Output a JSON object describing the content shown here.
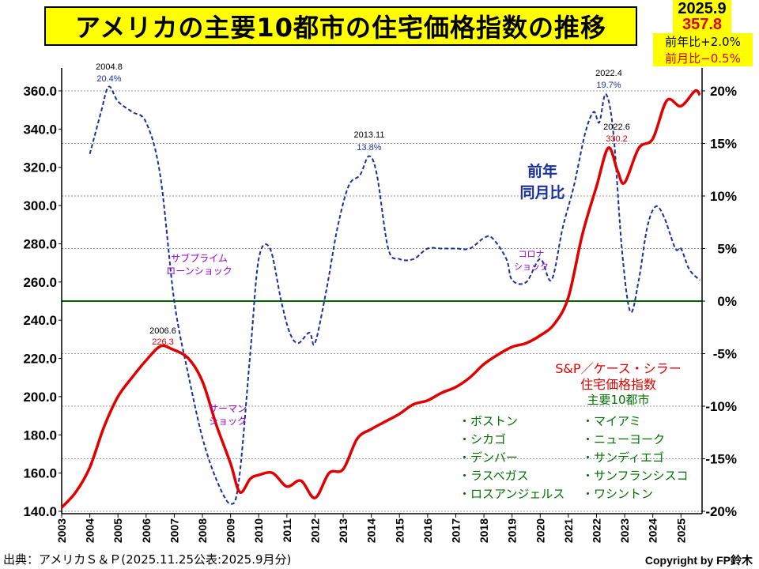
{
  "title": "アメリカの主要10都市の住宅価格指数の推移",
  "latest": {
    "date": "2025.9",
    "value": "357.8",
    "yoy": "前年比+2.0%",
    "mom": "前月比−0.5%"
  },
  "footer": {
    "source": "出典：アメリカＳ＆Ｐ(2025.11.25公表:2025.9月分)",
    "credit": "Copyright by FP鈴木"
  },
  "colors": {
    "index_line": "#e00000",
    "yoy_line": "#1a2fa0",
    "zero_line": "#006400",
    "annotation_purple": "#9900cc",
    "cities_text": "#007000",
    "title_bg": "#ffff00"
  },
  "chart_data": {
    "type": "line",
    "left_axis": {
      "min": 140,
      "max": 360,
      "ticks": [
        "140.0",
        "160.0",
        "180.0",
        "200.0",
        "220.0",
        "240.0",
        "260.0",
        "280.0",
        "300.0",
        "320.0",
        "340.0",
        "360.0"
      ]
    },
    "right_axis": {
      "min": -20,
      "max": 20,
      "unit": "%",
      "ticks": [
        "-20%",
        "-15%",
        "-10%",
        "-5%",
        "0%",
        "5%",
        "10%",
        "15%",
        "20%"
      ]
    },
    "x_labels": [
      "2003",
      "2004",
      "2005",
      "2006",
      "2007",
      "2008",
      "2009",
      "2010",
      "2011",
      "2012",
      "2013",
      "2014",
      "2015",
      "2016",
      "2017",
      "2018",
      "2019",
      "2020",
      "2021",
      "2022",
      "2023",
      "2024",
      "2025"
    ],
    "grid": "dashed horizontal",
    "series": [
      {
        "name": "S&P/ケース・シラー住宅価格指数 主要10都市",
        "axis": "left",
        "x": [
          2003.0,
          2003.5,
          2004.0,
          2004.5,
          2005.0,
          2005.5,
          2006.0,
          2006.5,
          2006.9,
          2007.5,
          2008.0,
          2008.5,
          2009.0,
          2009.33,
          2009.7,
          2010.0,
          2010.5,
          2011.0,
          2011.5,
          2012.0,
          2012.5,
          2013.0,
          2013.5,
          2014.0,
          2014.5,
          2015.0,
          2015.5,
          2016.0,
          2016.5,
          2017.0,
          2017.5,
          2018.0,
          2018.5,
          2019.0,
          2019.5,
          2020.0,
          2020.5,
          2021.0,
          2021.5,
          2022.0,
          2022.42,
          2022.75,
          2023.0,
          2023.5,
          2024.0,
          2024.5,
          2025.0,
          2025.5,
          2025.67
        ],
        "values": [
          142,
          150,
          163,
          184,
          200,
          210,
          219,
          226.3,
          225,
          220,
          208,
          185,
          165,
          150,
          157,
          159,
          160,
          153,
          156,
          147,
          160,
          162,
          178,
          183,
          187,
          191,
          196,
          198,
          202,
          205,
          210,
          217,
          222,
          226,
          228,
          232,
          238,
          252,
          285,
          310,
          330.2,
          318,
          312,
          330,
          335,
          355,
          352,
          360,
          357.8
        ]
      },
      {
        "name": "前年同月比",
        "axis": "right",
        "x": [
          2004.0,
          2004.4,
          2004.67,
          2005.0,
          2005.5,
          2006.0,
          2006.5,
          2007.0,
          2007.5,
          2008.0,
          2008.5,
          2009.0,
          2009.3,
          2009.7,
          2010.0,
          2010.4,
          2010.8,
          2011.1,
          2011.4,
          2011.8,
          2012.0,
          2012.4,
          2012.8,
          2013.2,
          2013.6,
          2013.92,
          2014.2,
          2014.6,
          2015.0,
          2015.5,
          2016.0,
          2016.5,
          2017.0,
          2017.5,
          2018.0,
          2018.3,
          2018.8,
          2019.0,
          2019.5,
          2020.0,
          2020.4,
          2020.8,
          2021.2,
          2021.6,
          2021.9,
          2022.1,
          2022.33,
          2022.6,
          2022.9,
          2023.2,
          2023.5,
          2023.8,
          2024.1,
          2024.4,
          2024.8,
          2025.0,
          2025.3,
          2025.67
        ],
        "values": [
          14,
          18,
          20.4,
          19,
          18,
          17,
          12,
          0,
          -7,
          -13,
          -17,
          -19.3,
          -17,
          -5,
          4,
          5,
          0,
          -3,
          -4,
          -3,
          -4,
          1,
          7,
          11,
          12,
          13.8,
          12,
          5,
          4,
          4,
          5,
          5,
          5,
          5,
          6,
          6,
          4,
          2,
          1.8,
          4,
          2,
          7,
          11,
          16,
          18,
          17,
          19.7,
          16,
          5,
          -1,
          2,
          7,
          9,
          8,
          5,
          5,
          3,
          2
        ]
      }
    ],
    "annotations": {
      "yoy_peak_2004": {
        "date": "2004.8",
        "value": "20.4%"
      },
      "yoy_peak_2013": {
        "date": "2013.11",
        "value": "13.8%"
      },
      "yoy_peak_2022": {
        "date": "2022.4",
        "value": "19.7%"
      },
      "index_peak_2006": {
        "date": "2006.6",
        "value": "226.3"
      },
      "index_peak_2022": {
        "date": "2022.6",
        "value": "330.2"
      },
      "subprime": [
        "サブプライム",
        "ローンショック"
      ],
      "lehman": [
        "サーマン",
        "ショック"
      ],
      "covid": [
        "コロナ",
        "ショック"
      ],
      "yoy_series_label": [
        "前年",
        "同月比"
      ],
      "index_series_label": [
        "S&P／ケース・シラー",
        "住宅価格指数",
        "主要10都市"
      ]
    },
    "cities": {
      "left": [
        "・ボストン",
        "・シカゴ",
        "・デンバー",
        "・ラスベガス",
        "・ロスアンジェルス"
      ],
      "right": [
        "・マイアミ",
        "・ニューヨーク",
        "・サンディエゴ",
        "・サンフランシスコ",
        "・ワシントン"
      ]
    }
  }
}
